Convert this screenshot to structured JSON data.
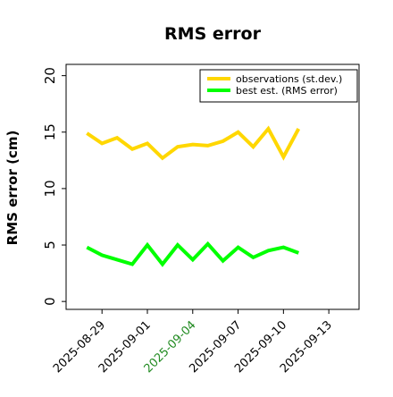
{
  "chart_data": {
    "type": "line",
    "title": "RMS error",
    "ylabel": "RMS error (cm)",
    "xlabel": "",
    "ylim": [
      -0.7,
      21
    ],
    "xlim": [
      "2025-08-26T15:00",
      "2025-09-15T00:00"
    ],
    "yticks": [
      0,
      5,
      10,
      15,
      20
    ],
    "xticks": [
      "2025-08-29",
      "2025-09-01",
      "2025-09-04",
      "2025-09-07",
      "2025-09-10",
      "2025-09-13"
    ],
    "highlight_tick": "2025-09-04",
    "highlight_color": "#228b22",
    "grid": false,
    "legend_position": "top-right",
    "x": [
      "2025-08-28",
      "2025-08-29",
      "2025-08-30",
      "2025-08-31",
      "2025-09-01",
      "2025-09-02",
      "2025-09-03",
      "2025-09-04",
      "2025-09-05",
      "2025-09-06",
      "2025-09-07",
      "2025-09-08",
      "2025-09-09",
      "2025-09-10",
      "2025-09-11"
    ],
    "series": [
      {
        "name": "observations (st.dev.)",
        "color": "#ffd700",
        "values": [
          14.9,
          14.0,
          14.5,
          13.5,
          14.0,
          12.7,
          13.7,
          13.9,
          13.8,
          14.2,
          15.0,
          13.7,
          15.3,
          12.8,
          15.3
        ]
      },
      {
        "name": "best est. (RMS error)",
        "color": "#00ff00",
        "values": [
          4.8,
          4.1,
          3.7,
          3.3,
          5.0,
          3.3,
          5.0,
          3.7,
          5.1,
          3.6,
          4.8,
          3.9,
          4.5,
          4.8,
          4.3
        ]
      }
    ]
  }
}
